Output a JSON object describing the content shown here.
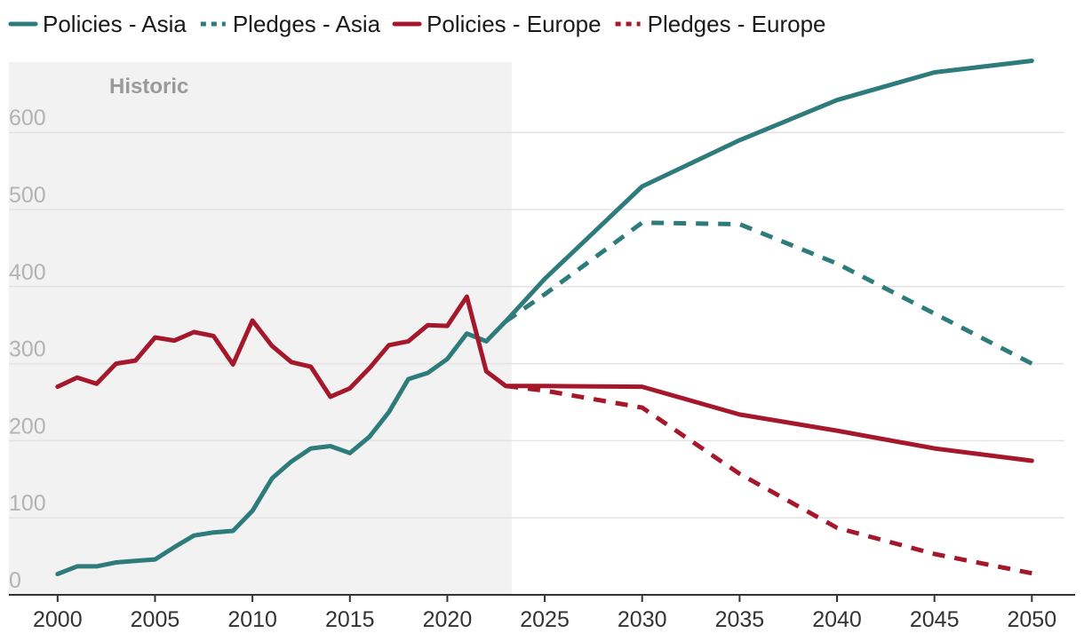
{
  "chart_data": {
    "type": "line",
    "title": "",
    "xlabel": "",
    "ylabel": "",
    "xlim": [
      1997.5,
      2051.5
    ],
    "ylim": [
      0,
      700
    ],
    "y_ticks": [
      0,
      100,
      200,
      300,
      400,
      500,
      600
    ],
    "x_ticks": [
      2000,
      2005,
      2010,
      2015,
      2020,
      2025,
      2030,
      2035,
      2040,
      2045,
      2050
    ],
    "grid": "horizontal",
    "legend_position": "top",
    "shaded_region": {
      "label": "Historic",
      "x_start": 1997.5,
      "x_end": 2023.3,
      "color": "#f2f2f2"
    },
    "colors": {
      "asia": "#2e7b7b",
      "europe": "#a5182b",
      "grid": "#e3e3e3",
      "axis": "#333333"
    },
    "series": [
      {
        "name": "Policies - Asia",
        "region": "asia",
        "dashed": false,
        "x": [
          2000,
          2001,
          2002,
          2003,
          2004,
          2005,
          2006,
          2007,
          2008,
          2009,
          2010,
          2011,
          2012,
          2013,
          2014,
          2015,
          2016,
          2017,
          2018,
          2019,
          2020,
          2021,
          2022,
          2023,
          2025,
          2030,
          2035,
          2040,
          2045,
          2050
        ],
        "values": [
          27,
          37,
          37,
          42,
          44,
          46,
          62,
          77,
          81,
          83,
          109,
          151,
          173,
          190,
          193,
          184,
          205,
          237,
          280,
          288,
          306,
          339,
          329,
          355,
          410,
          530,
          590,
          642,
          678,
          693
        ]
      },
      {
        "name": "Pledges - Asia",
        "region": "asia",
        "dashed": true,
        "x": [
          2023,
          2025,
          2030,
          2035,
          2040,
          2045,
          2050
        ],
        "values": [
          355,
          390,
          483,
          481,
          430,
          365,
          300
        ]
      },
      {
        "name": "Policies - Europe",
        "region": "europe",
        "dashed": false,
        "x": [
          2000,
          2001,
          2002,
          2003,
          2004,
          2005,
          2006,
          2007,
          2008,
          2009,
          2010,
          2011,
          2012,
          2013,
          2014,
          2015,
          2016,
          2017,
          2018,
          2019,
          2020,
          2021,
          2022,
          2023,
          2025,
          2030,
          2035,
          2040,
          2045,
          2050
        ],
        "values": [
          270,
          282,
          274,
          300,
          304,
          334,
          330,
          341,
          336,
          299,
          356,
          323,
          302,
          296,
          257,
          268,
          294,
          324,
          329,
          350,
          349,
          387,
          290,
          271,
          271,
          270,
          234,
          213,
          190,
          174
        ]
      },
      {
        "name": "Pledges - Europe",
        "region": "europe",
        "dashed": true,
        "x": [
          2023,
          2025,
          2030,
          2035,
          2040,
          2045,
          2050
        ],
        "values": [
          271,
          265,
          243,
          157,
          87,
          53,
          28
        ]
      }
    ]
  }
}
